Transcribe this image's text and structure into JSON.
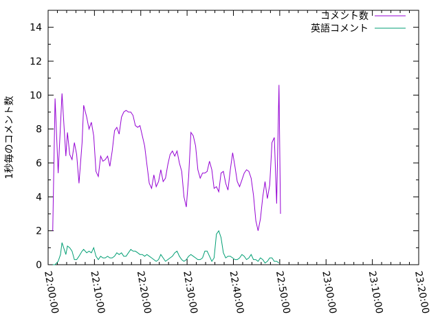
{
  "chart_data": {
    "type": "line",
    "title": "",
    "xlabel": "",
    "ylabel": "1秒毎のコメント数",
    "ylim": [
      0,
      15
    ],
    "yticks": [
      0,
      2,
      4,
      6,
      8,
      10,
      12,
      14
    ],
    "ytick_labels": [
      "0",
      "2",
      "4",
      "6",
      "8",
      "10",
      "12",
      "14"
    ],
    "xlim": [
      "22:00:00",
      "23:20:00"
    ],
    "xtick_labels": [
      "22:00:00",
      "22:10:00",
      "22:20:00",
      "22:30:00",
      "22:40:00",
      "22:50:00",
      "23:00:00",
      "23:10:00",
      "23:20:00"
    ],
    "grid": false,
    "legend_position": "top-right",
    "series": [
      {
        "name": "コメント数",
        "color": "#9400d3",
        "points": [
          [
            "22:01:00",
            2.0
          ],
          [
            "22:01:30",
            9.8
          ],
          [
            "22:02:10",
            5.4
          ],
          [
            "22:03:00",
            10.1
          ],
          [
            "22:03:50",
            6.4
          ],
          [
            "22:04:10",
            7.8
          ],
          [
            "22:04:40",
            6.5
          ],
          [
            "22:05:10",
            6.2
          ],
          [
            "22:05:40",
            7.2
          ],
          [
            "22:06:10",
            6.5
          ],
          [
            "22:06:40",
            4.8
          ],
          [
            "22:07:20",
            7.2
          ],
          [
            "22:07:40",
            9.4
          ],
          [
            "22:08:20",
            8.7
          ],
          [
            "22:08:50",
            8.0
          ],
          [
            "22:09:20",
            8.4
          ],
          [
            "22:09:50",
            7.6
          ],
          [
            "22:10:20",
            5.5
          ],
          [
            "22:10:50",
            5.2
          ],
          [
            "22:11:20",
            6.4
          ],
          [
            "22:11:50",
            6.1
          ],
          [
            "22:12:20",
            6.2
          ],
          [
            "22:12:50",
            6.4
          ],
          [
            "22:13:20",
            5.8
          ],
          [
            "22:13:50",
            6.7
          ],
          [
            "22:14:20",
            7.9
          ],
          [
            "22:14:50",
            8.1
          ],
          [
            "22:15:20",
            7.7
          ],
          [
            "22:15:50",
            8.7
          ],
          [
            "22:16:20",
            9.0
          ],
          [
            "22:16:50",
            9.1
          ],
          [
            "22:17:20",
            9.0
          ],
          [
            "22:17:50",
            9.0
          ],
          [
            "22:18:20",
            8.8
          ],
          [
            "22:18:50",
            8.2
          ],
          [
            "22:19:20",
            8.1
          ],
          [
            "22:19:50",
            8.2
          ],
          [
            "22:20:20",
            7.6
          ],
          [
            "22:20:50",
            7.0
          ],
          [
            "22:21:20",
            5.9
          ],
          [
            "22:21:50",
            4.8
          ],
          [
            "22:22:20",
            4.5
          ],
          [
            "22:22:50",
            5.3
          ],
          [
            "22:23:20",
            4.6
          ],
          [
            "22:23:50",
            4.9
          ],
          [
            "22:24:20",
            5.6
          ],
          [
            "22:24:50",
            4.9
          ],
          [
            "22:25:20",
            5.1
          ],
          [
            "22:25:50",
            5.9
          ],
          [
            "22:26:20",
            6.5
          ],
          [
            "22:26:50",
            6.7
          ],
          [
            "22:27:20",
            6.4
          ],
          [
            "22:27:50",
            6.7
          ],
          [
            "22:28:20",
            6.0
          ],
          [
            "22:28:50",
            5.5
          ],
          [
            "22:29:20",
            4.0
          ],
          [
            "22:29:50",
            3.4
          ],
          [
            "22:30:20",
            5.2
          ],
          [
            "22:30:50",
            7.8
          ],
          [
            "22:31:20",
            7.6
          ],
          [
            "22:31:50",
            7.0
          ],
          [
            "22:32:20",
            5.6
          ],
          [
            "22:32:50",
            5.1
          ],
          [
            "22:33:20",
            5.4
          ],
          [
            "22:33:50",
            5.4
          ],
          [
            "22:34:20",
            5.5
          ],
          [
            "22:34:50",
            6.1
          ],
          [
            "22:35:20",
            5.6
          ],
          [
            "22:35:50",
            4.5
          ],
          [
            "22:36:20",
            4.6
          ],
          [
            "22:36:50",
            4.3
          ],
          [
            "22:37:20",
            5.4
          ],
          [
            "22:37:50",
            5.5
          ],
          [
            "22:38:20",
            4.8
          ],
          [
            "22:38:50",
            4.4
          ],
          [
            "22:39:20",
            5.6
          ],
          [
            "22:39:50",
            6.6
          ],
          [
            "22:40:20",
            5.8
          ],
          [
            "22:40:50",
            4.9
          ],
          [
            "22:41:20",
            4.6
          ],
          [
            "22:41:50",
            5.0
          ],
          [
            "22:42:20",
            5.4
          ],
          [
            "22:42:50",
            5.6
          ],
          [
            "22:43:20",
            5.5
          ],
          [
            "22:43:50",
            5.1
          ],
          [
            "22:44:20",
            4.1
          ],
          [
            "22:44:50",
            2.6
          ],
          [
            "22:45:20",
            2.0
          ],
          [
            "22:45:50",
            2.7
          ],
          [
            "22:46:20",
            4.0
          ],
          [
            "22:46:50",
            4.9
          ],
          [
            "22:47:20",
            3.9
          ],
          [
            "22:47:50",
            4.7
          ],
          [
            "22:48:20",
            7.2
          ],
          [
            "22:48:50",
            7.5
          ],
          [
            "22:49:20",
            3.6
          ],
          [
            "22:49:50",
            10.6
          ],
          [
            "22:50:10",
            3.0
          ]
        ]
      },
      {
        "name": "英語コメント",
        "color": "#009e73",
        "points": [
          [
            "22:01:00",
            0.0
          ],
          [
            "22:01:30",
            0.0
          ],
          [
            "22:02:10",
            0.2
          ],
          [
            "22:02:40",
            0.6
          ],
          [
            "22:03:00",
            1.3
          ],
          [
            "22:03:50",
            0.6
          ],
          [
            "22:04:10",
            1.1
          ],
          [
            "22:04:40",
            1.0
          ],
          [
            "22:05:10",
            0.8
          ],
          [
            "22:05:40",
            0.3
          ],
          [
            "22:06:10",
            0.3
          ],
          [
            "22:06:40",
            0.5
          ],
          [
            "22:07:20",
            0.8
          ],
          [
            "22:07:40",
            0.9
          ],
          [
            "22:08:20",
            0.7
          ],
          [
            "22:08:50",
            0.8
          ],
          [
            "22:09:20",
            0.7
          ],
          [
            "22:09:50",
            1.0
          ],
          [
            "22:10:20",
            0.5
          ],
          [
            "22:10:50",
            0.3
          ],
          [
            "22:11:20",
            0.5
          ],
          [
            "22:11:50",
            0.4
          ],
          [
            "22:12:20",
            0.4
          ],
          [
            "22:12:50",
            0.5
          ],
          [
            "22:13:20",
            0.4
          ],
          [
            "22:13:50",
            0.4
          ],
          [
            "22:14:20",
            0.5
          ],
          [
            "22:14:50",
            0.7
          ],
          [
            "22:15:20",
            0.6
          ],
          [
            "22:15:50",
            0.7
          ],
          [
            "22:16:20",
            0.5
          ],
          [
            "22:16:50",
            0.5
          ],
          [
            "22:17:20",
            0.7
          ],
          [
            "22:17:50",
            0.9
          ],
          [
            "22:18:20",
            0.8
          ],
          [
            "22:18:50",
            0.8
          ],
          [
            "22:19:20",
            0.7
          ],
          [
            "22:19:50",
            0.6
          ],
          [
            "22:20:20",
            0.6
          ],
          [
            "22:20:50",
            0.5
          ],
          [
            "22:21:20",
            0.6
          ],
          [
            "22:21:50",
            0.5
          ],
          [
            "22:22:20",
            0.4
          ],
          [
            "22:22:50",
            0.3
          ],
          [
            "22:23:20",
            0.2
          ],
          [
            "22:23:50",
            0.3
          ],
          [
            "22:24:20",
            0.6
          ],
          [
            "22:24:50",
            0.4
          ],
          [
            "22:25:20",
            0.2
          ],
          [
            "22:25:50",
            0.3
          ],
          [
            "22:26:20",
            0.4
          ],
          [
            "22:26:50",
            0.5
          ],
          [
            "22:27:20",
            0.7
          ],
          [
            "22:27:50",
            0.8
          ],
          [
            "22:28:20",
            0.5
          ],
          [
            "22:28:50",
            0.3
          ],
          [
            "22:29:20",
            0.2
          ],
          [
            "22:29:50",
            0.3
          ],
          [
            "22:30:20",
            0.5
          ],
          [
            "22:30:50",
            0.6
          ],
          [
            "22:31:20",
            0.5
          ],
          [
            "22:31:50",
            0.4
          ],
          [
            "22:32:20",
            0.3
          ],
          [
            "22:32:50",
            0.3
          ],
          [
            "22:33:20",
            0.4
          ],
          [
            "22:33:50",
            0.8
          ],
          [
            "22:34:20",
            0.8
          ],
          [
            "22:34:50",
            0.5
          ],
          [
            "22:35:20",
            0.2
          ],
          [
            "22:35:50",
            0.4
          ],
          [
            "22:36:20",
            1.8
          ],
          [
            "22:36:50",
            2.0
          ],
          [
            "22:37:20",
            1.6
          ],
          [
            "22:37:50",
            0.7
          ],
          [
            "22:38:20",
            0.4
          ],
          [
            "22:38:50",
            0.5
          ],
          [
            "22:39:20",
            0.5
          ],
          [
            "22:39:50",
            0.4
          ],
          [
            "22:40:20",
            0.3
          ],
          [
            "22:40:50",
            0.3
          ],
          [
            "22:41:20",
            0.4
          ],
          [
            "22:41:50",
            0.6
          ],
          [
            "22:42:20",
            0.5
          ],
          [
            "22:42:50",
            0.3
          ],
          [
            "22:43:20",
            0.4
          ],
          [
            "22:43:50",
            0.6
          ],
          [
            "22:44:20",
            0.3
          ],
          [
            "22:44:50",
            0.3
          ],
          [
            "22:45:20",
            0.2
          ],
          [
            "22:45:50",
            0.4
          ],
          [
            "22:46:20",
            0.3
          ],
          [
            "22:46:50",
            0.1
          ],
          [
            "22:47:20",
            0.2
          ],
          [
            "22:47:50",
            0.4
          ],
          [
            "22:48:20",
            0.4
          ],
          [
            "22:48:50",
            0.2
          ],
          [
            "22:49:20",
            0.2
          ],
          [
            "22:49:50",
            0.1
          ]
        ]
      }
    ]
  }
}
